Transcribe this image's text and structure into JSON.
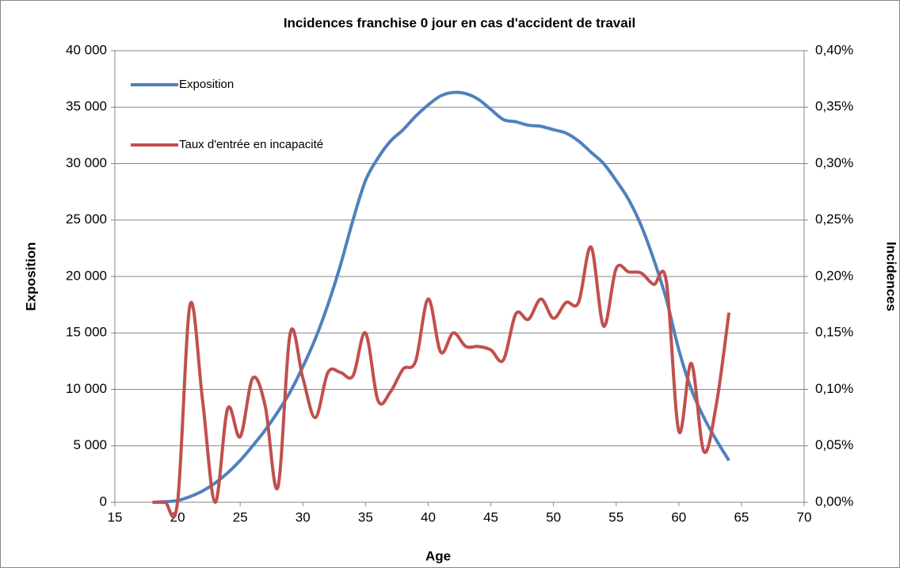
{
  "chart_data": {
    "type": "line",
    "title": "Incidences franchise 0 jour en cas d'accident de travail",
    "x_label": "Age",
    "y_label": "Exposition",
    "y2_label": "Incidences",
    "x": [
      18,
      19,
      20,
      21,
      22,
      23,
      24,
      25,
      26,
      27,
      28,
      29,
      30,
      31,
      32,
      33,
      34,
      35,
      36,
      37,
      38,
      39,
      40,
      41,
      42,
      43,
      44,
      45,
      46,
      47,
      48,
      49,
      50,
      51,
      52,
      53,
      54,
      55,
      56,
      57,
      58,
      59,
      60,
      61,
      62,
      63,
      64
    ],
    "series": [
      {
        "name": "Exposition",
        "color": "#4f81bd",
        "axis": "y",
        "values": [
          0,
          50,
          150,
          500,
          1000,
          1700,
          2600,
          3700,
          5000,
          6400,
          8000,
          9800,
          12000,
          14500,
          17500,
          21000,
          25000,
          28500,
          30500,
          32000,
          33000,
          34200,
          35200,
          36000,
          36300,
          36200,
          35700,
          34800,
          33900,
          33700,
          33400,
          33300,
          33000,
          32700,
          32000,
          31000,
          30000,
          28500,
          26800,
          24500,
          21500,
          18000,
          13500,
          10000,
          7500,
          5500,
          3700
        ]
      },
      {
        "name": "Taux d'entrée en incapacité",
        "color": "#c0504d",
        "axis": "y2",
        "values": [
          0,
          0,
          0,
          0.175,
          0.09,
          0,
          0.083,
          0.058,
          0.11,
          0.085,
          0.013,
          0.15,
          0.11,
          0.075,
          0.115,
          0.115,
          0.112,
          0.15,
          0.09,
          0.098,
          0.118,
          0.125,
          0.18,
          0.133,
          0.15,
          0.138,
          0.138,
          0.135,
          0.126,
          0.167,
          0.162,
          0.18,
          0.163,
          0.177,
          0.177,
          0.226,
          0.156,
          0.207,
          0.204,
          0.203,
          0.193,
          0.196,
          0.063,
          0.123,
          0.045,
          0.087,
          0.168
        ]
      }
    ],
    "xlim": [
      15,
      70
    ],
    "xticks": [
      15,
      20,
      25,
      30,
      35,
      40,
      45,
      50,
      55,
      60,
      65,
      70
    ],
    "ylim": [
      0,
      40000
    ],
    "yticks": [
      {
        "value": 0,
        "label": "0"
      },
      {
        "value": 5000,
        "label": "5 000"
      },
      {
        "value": 10000,
        "label": "10 000"
      },
      {
        "value": 15000,
        "label": "15 000"
      },
      {
        "value": 20000,
        "label": "20 000"
      },
      {
        "value": 25000,
        "label": "25 000"
      },
      {
        "value": 30000,
        "label": "30 000"
      },
      {
        "value": 35000,
        "label": "35 000"
      },
      {
        "value": 40000,
        "label": "40 000"
      }
    ],
    "y2lim": [
      0,
      0.4
    ],
    "y2ticks": [
      {
        "value": 0,
        "label": "0,00%"
      },
      {
        "value": 0.05,
        "label": "0,05%"
      },
      {
        "value": 0.1,
        "label": "0,10%"
      },
      {
        "value": 0.15,
        "label": "0,15%"
      },
      {
        "value": 0.2,
        "label": "0,20%"
      },
      {
        "value": 0.25,
        "label": "0,25%"
      },
      {
        "value": 0.3,
        "label": "0,30%"
      },
      {
        "value": 0.35,
        "label": "0,35%"
      },
      {
        "value": 0.4,
        "label": "0,40%"
      }
    ],
    "grid": true,
    "legend": "upper left"
  }
}
